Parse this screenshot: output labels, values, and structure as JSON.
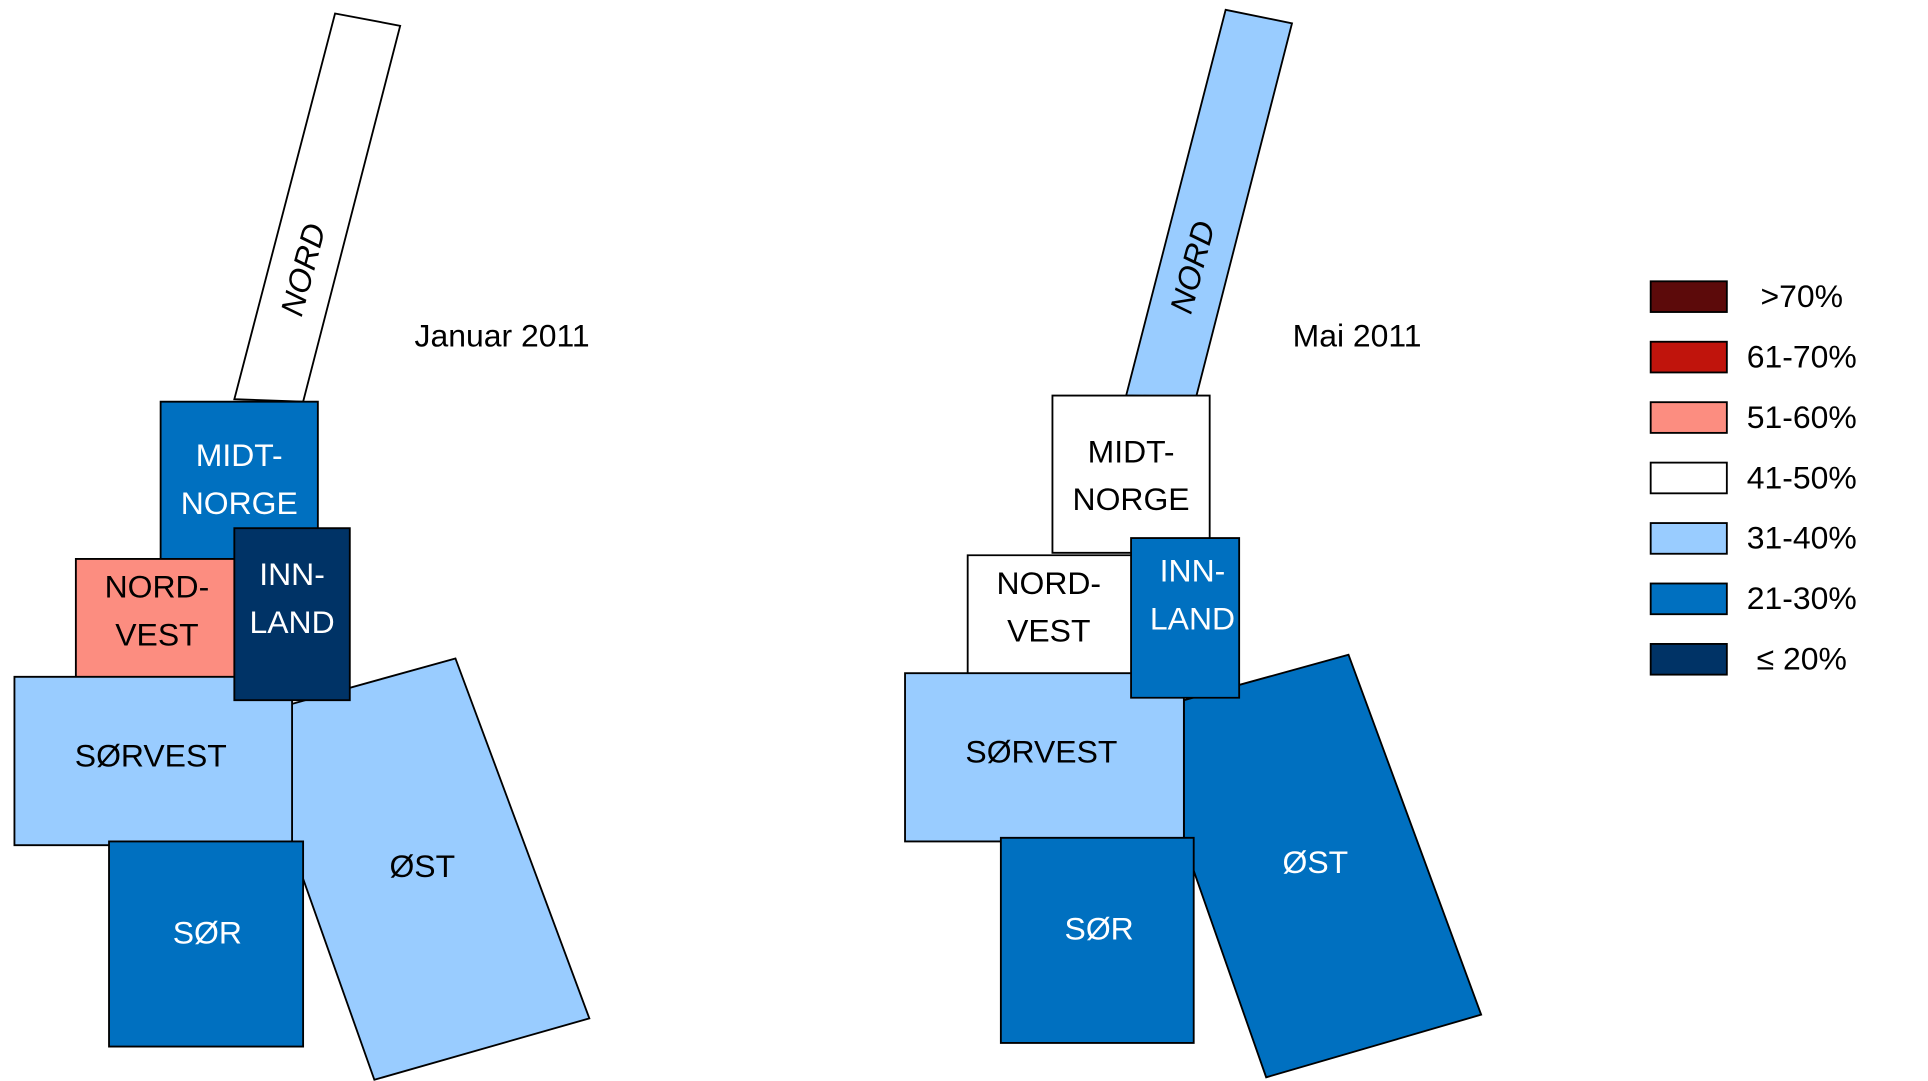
{
  "maps": [
    {
      "title": "Januar 2011",
      "regions": [
        {
          "label": [
            "NORD"
          ],
          "color": "#ffffff"
        },
        {
          "label": [
            "MIDT-",
            "NORGE"
          ],
          "color": "#0070c0"
        },
        {
          "label": [
            "NORD-",
            "VEST"
          ],
          "color": "#fc8d80"
        },
        {
          "label": [
            "ØST"
          ],
          "color": "#99ccff"
        },
        {
          "label": [
            "SØRVEST"
          ],
          "color": "#99ccff"
        },
        {
          "label": [
            "INN-",
            "LAND"
          ],
          "color": "#003366"
        },
        {
          "label": [
            "SØR"
          ],
          "color": "#0070c0"
        }
      ]
    },
    {
      "title": "Mai 2011",
      "regions": [
        {
          "label": [
            "NORD"
          ],
          "color": "#99ccff"
        },
        {
          "label": [
            "MIDT-",
            "NORGE"
          ],
          "color": "#ffffff"
        },
        {
          "label": [
            "NORD-",
            "VEST"
          ],
          "color": "#ffffff"
        },
        {
          "label": [
            "ØST"
          ],
          "color": "#0070c0"
        },
        {
          "label": [
            "SØRVEST"
          ],
          "color": "#99ccff"
        },
        {
          "label": [
            "INN-",
            "LAND"
          ],
          "color": "#0070c0"
        },
        {
          "label": [
            "SØR"
          ],
          "color": "#0070c0"
        }
      ]
    }
  ],
  "legend": [
    {
      "label": ">70%",
      "color": "#5c0a0a"
    },
    {
      "label": "61-70%",
      "color": "#c0140c"
    },
    {
      "label": "51-60%",
      "color": "#fc8d80"
    },
    {
      "label": "41-50%",
      "color": "#ffffff"
    },
    {
      "label": "31-40%",
      "color": "#99ccff"
    },
    {
      "label": "21-30%",
      "color": "#0070c0"
    },
    {
      "label": "≤ 20%",
      "color": "#003366"
    }
  ]
}
